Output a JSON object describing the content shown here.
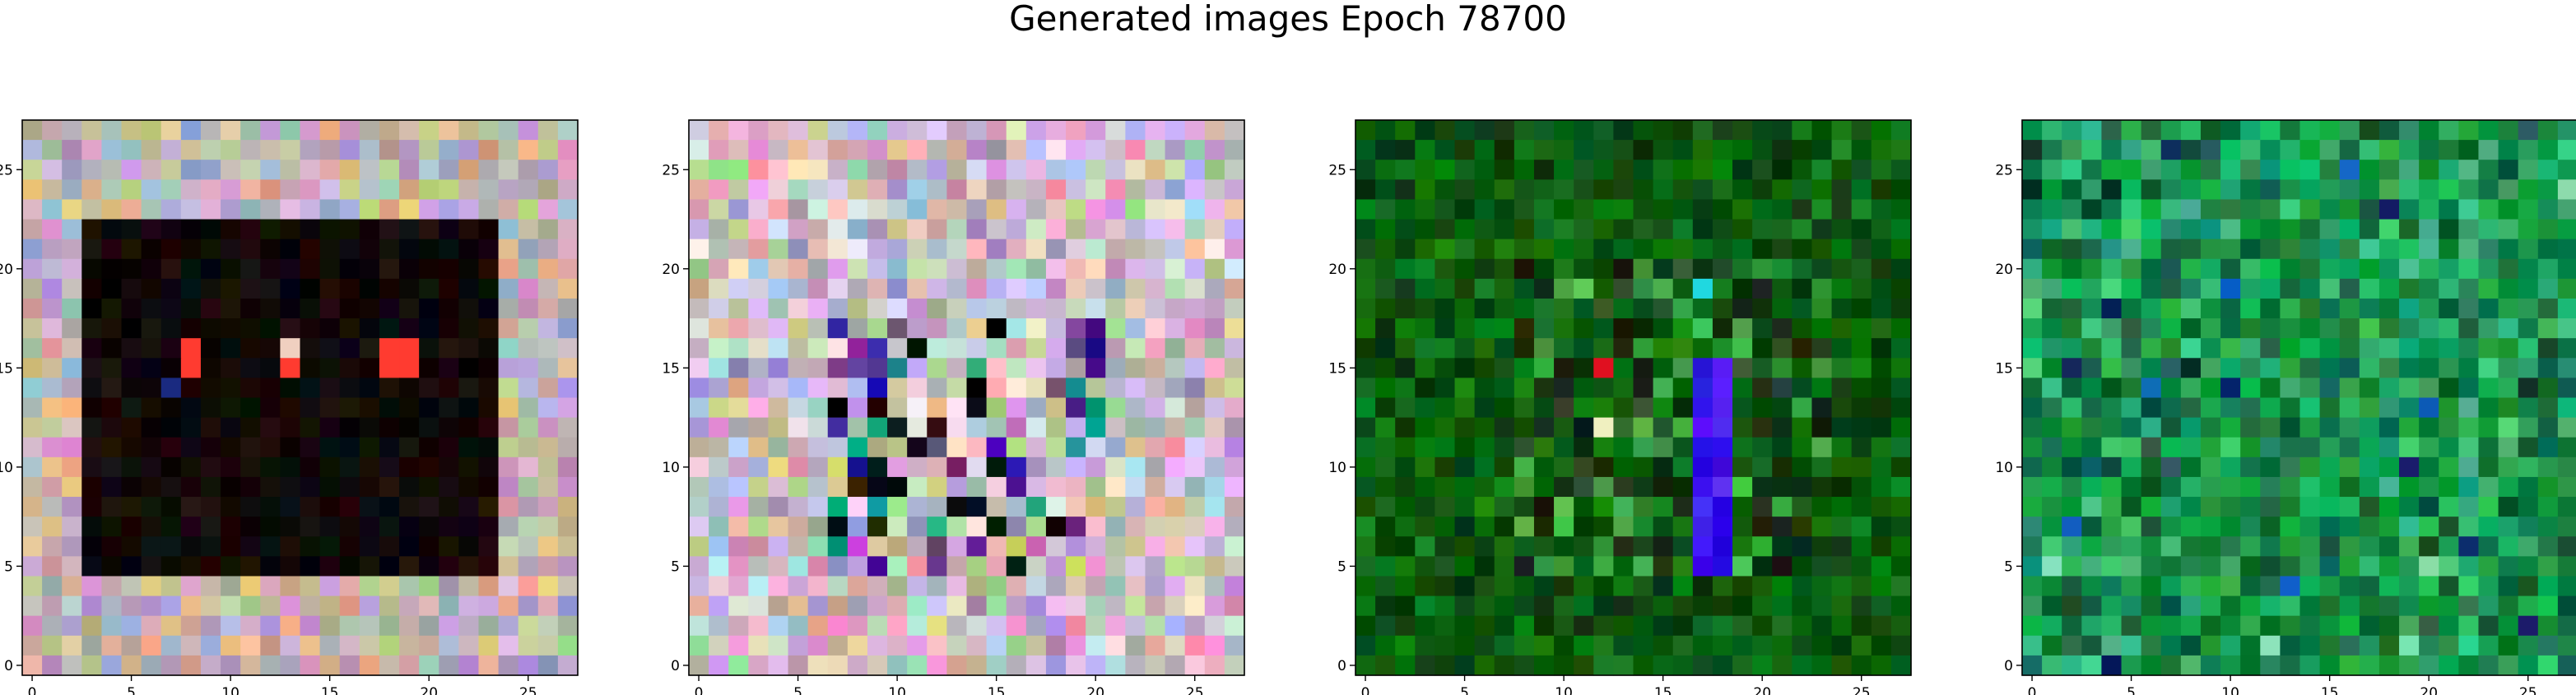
{
  "figure": {
    "title": "Generated images Epoch 78700"
  },
  "chart_data": [
    {
      "type": "heatmap",
      "grid_size": [
        28,
        28
      ],
      "xticks": [
        0,
        5,
        10,
        15,
        20,
        25
      ],
      "yticks": [
        0,
        5,
        10,
        15,
        20,
        25
      ],
      "xlim": [
        -0.5,
        27.5
      ],
      "ylim": [
        27.5,
        -0.5
      ],
      "grid": false,
      "description_palette": {
        "border": [
          "#c9a0c9",
          "#b8b0a0",
          "#d0c090",
          "#a8b8c0",
          "#c8a8d0",
          "#b0c0a0",
          "#e0b090",
          "#a0a8c8"
        ],
        "center": [
          "#0a0a0a",
          "#140a0a",
          "#080808",
          "#1a0c08",
          "#100604"
        ],
        "highlights": [
          "#ff3b30",
          "#f0d0c0",
          "#1a2a80"
        ]
      },
      "seed": 11
    },
    {
      "type": "heatmap",
      "grid_size": [
        28,
        28
      ],
      "xticks": [
        0,
        5,
        10,
        15,
        20,
        25
      ],
      "yticks": [
        0,
        5,
        10,
        15,
        20,
        25
      ],
      "xlim": [
        -0.5,
        27.5
      ],
      "ylim": [
        27.5,
        -0.5
      ],
      "grid": false,
      "description_palette": {
        "border": [
          "#c8b0d8",
          "#d8c8e0",
          "#b0c8a0",
          "#e0a8c0",
          "#c0d0e0",
          "#d0c0a0",
          "#a8a0c0",
          "#e8d0d8"
        ],
        "center": [
          "#3020a0",
          "#201010",
          "#c0c070",
          "#704080",
          "#10a090",
          "#c060c0",
          "#000000"
        ],
        "highlights": [
          "#d8a020",
          "#e080b0",
          "#2030c0"
        ]
      },
      "seed": 23
    },
    {
      "type": "heatmap",
      "grid_size": [
        28,
        28
      ],
      "xticks": [
        0,
        5,
        10,
        15,
        20,
        25
      ],
      "yticks": [
        0,
        5,
        10,
        15,
        20,
        25
      ],
      "xlim": [
        -0.5,
        27.5
      ],
      "ylim": [
        27.5,
        -0.5
      ],
      "grid": false,
      "description_palette": {
        "border": [
          "#0a5a10",
          "#0c6a14",
          "#0a4a0c",
          "#127a18",
          "#083c0a",
          "#0e6010"
        ],
        "center": [
          "#1a2a10",
          "#208020",
          "#40a040",
          "#305030",
          "#102010",
          "#50c050"
        ],
        "highlights": [
          "#3010e0",
          "#5020ff",
          "#f0f0c0",
          "#e01020",
          "#20d8e0"
        ]
      },
      "seed": 37
    },
    {
      "type": "heatmap",
      "grid_size": [
        28,
        28
      ],
      "xticks": [
        0,
        5,
        10,
        15,
        20,
        25
      ],
      "yticks": [
        0,
        5,
        10,
        15,
        20,
        25
      ],
      "xlim": [
        -0.5,
        27.5
      ],
      "ylim": [
        27.5,
        -0.5
      ],
      "grid": false,
      "description_palette": {
        "border": [
          "#109040",
          "#20a050",
          "#0a8038",
          "#18b060",
          "#0c7040",
          "#20a070"
        ],
        "center": [
          "#108840",
          "#30b060",
          "#0a6030",
          "#40c080",
          "#207050",
          "#18a048"
        ],
        "highlights": [
          "#102060",
          "#80e0b0",
          "#0a3a20",
          "#1060c0"
        ]
      },
      "seed": 53
    }
  ]
}
